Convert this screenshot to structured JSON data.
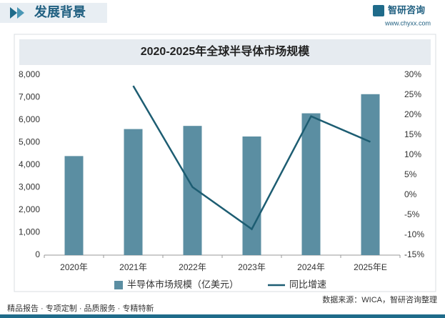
{
  "header": {
    "title": "发展背景",
    "logo": "智研咨询",
    "url": "www.chyxx.com"
  },
  "chart_data": {
    "type": "bar-line",
    "title": "2020-2025年全球半导体市场规模",
    "categories": [
      "2020年",
      "2021年",
      "2022年",
      "2023年",
      "2024年",
      "2025年E"
    ],
    "series": [
      {
        "name": "半导体市场规模（亿美元）",
        "type": "bar",
        "color": "#5b8ea2",
        "values": [
          4400,
          5600,
          5740,
          5270,
          6300,
          7150
        ]
      },
      {
        "name": "同比增速",
        "type": "line",
        "axis": "y2",
        "color": "#1d5d72",
        "values": [
          null,
          27.3,
          2,
          -8.5,
          19.7,
          13.3
        ]
      }
    ],
    "ylim": [
      0,
      8000
    ],
    "yticks": [
      0,
      {
        "value": 1000,
        "label": "1,000"
      },
      {
        "value": 2000,
        "label": "2,000"
      },
      {
        "value": 3000,
        "label": "3,000"
      },
      {
        "value": 4000,
        "label": "4,000"
      },
      {
        "value": 5000,
        "label": "5,000"
      },
      {
        "value": 6000,
        "label": "6,000"
      },
      {
        "value": 7000,
        "label": "7,000"
      },
      {
        "value": 8000,
        "label": "8,000"
      }
    ],
    "y2lim": [
      -15,
      30
    ],
    "y2ticks": [
      {
        "value": -15,
        "label": "-15%"
      },
      {
        "value": -10,
        "label": "-10%"
      },
      {
        "value": -5,
        "label": "-5%"
      },
      {
        "value": 0,
        "label": "0%"
      },
      {
        "value": 5,
        "label": "5%"
      },
      {
        "value": 10,
        "label": "10%"
      },
      {
        "value": 15,
        "label": "15%"
      },
      {
        "value": 20,
        "label": "20%"
      },
      {
        "value": 25,
        "label": "25%"
      },
      {
        "value": 30,
        "label": "30%"
      }
    ],
    "grid": false,
    "legend": "bottom"
  },
  "footer": {
    "slogan": "精品报告 · 专项定制 · 品质服务 · 专精特新",
    "source": "数据来源：WICA，智研咨询整理"
  }
}
